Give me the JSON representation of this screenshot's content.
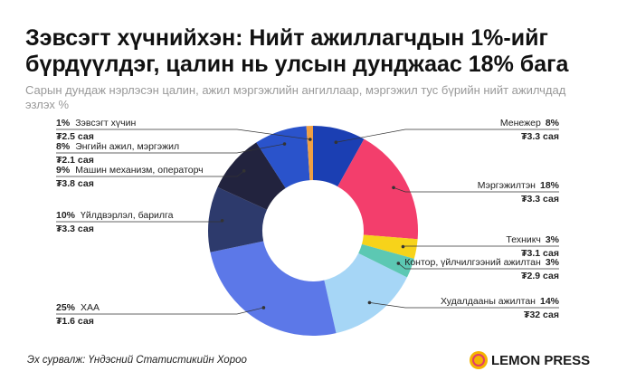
{
  "chart_data": {
    "type": "donut",
    "title": "Зэвсэгт хүчнийхэн: Нийт ажиллагчдын 1%-ийг бүрдүүлдэг, цалин нь улсын дунджаас 18% бага",
    "subtitle": "Сарын дундаж нэрлэсэн цалин, ажил мэргэжлийн ангиллаар, мэргэжил тус бүрийн нийт ажилчдад эзлэх %",
    "categories": [
      "Менежер",
      "Мэргэжилтэн",
      "Техникч",
      "Контор, үйлчилгээний ажилтан",
      "Худалдааны ажилтан",
      "ХАА",
      "Үйлдвэрлэл, барилга",
      "Машин механизм, операторч",
      "Энгийн ажил, мэргэжил",
      "Зэвсэгт хүчин"
    ],
    "values": [
      8,
      18,
      3,
      3,
      14,
      25,
      10,
      9,
      8,
      1
    ],
    "value_labels": [
      "8%",
      "18%",
      "3%",
      "3%",
      "14%",
      "25%",
      "10%",
      "9%",
      "8%",
      "1%"
    ],
    "salary_labels": [
      "₮3.3 сая",
      "₮3.3 сая",
      "₮3.1 сая",
      "₮2.9 сая",
      "₮32 сая",
      "₮1.6 сая",
      "₮3.3 сая",
      "₮3.8 сая",
      "₮2.1 сая",
      "₮2.5 сая"
    ],
    "colors": [
      "#1b3fb3",
      "#f33e6c",
      "#f7d31a",
      "#5cc8b3",
      "#a6d6f6",
      "#5c78e8",
      "#2d3a6c",
      "#22233e",
      "#2a53cb",
      "#f0a043"
    ],
    "source": "Эх сурвалж: Үндэсний Статистикийн Хороо",
    "brand": "LEMON PRESS"
  }
}
